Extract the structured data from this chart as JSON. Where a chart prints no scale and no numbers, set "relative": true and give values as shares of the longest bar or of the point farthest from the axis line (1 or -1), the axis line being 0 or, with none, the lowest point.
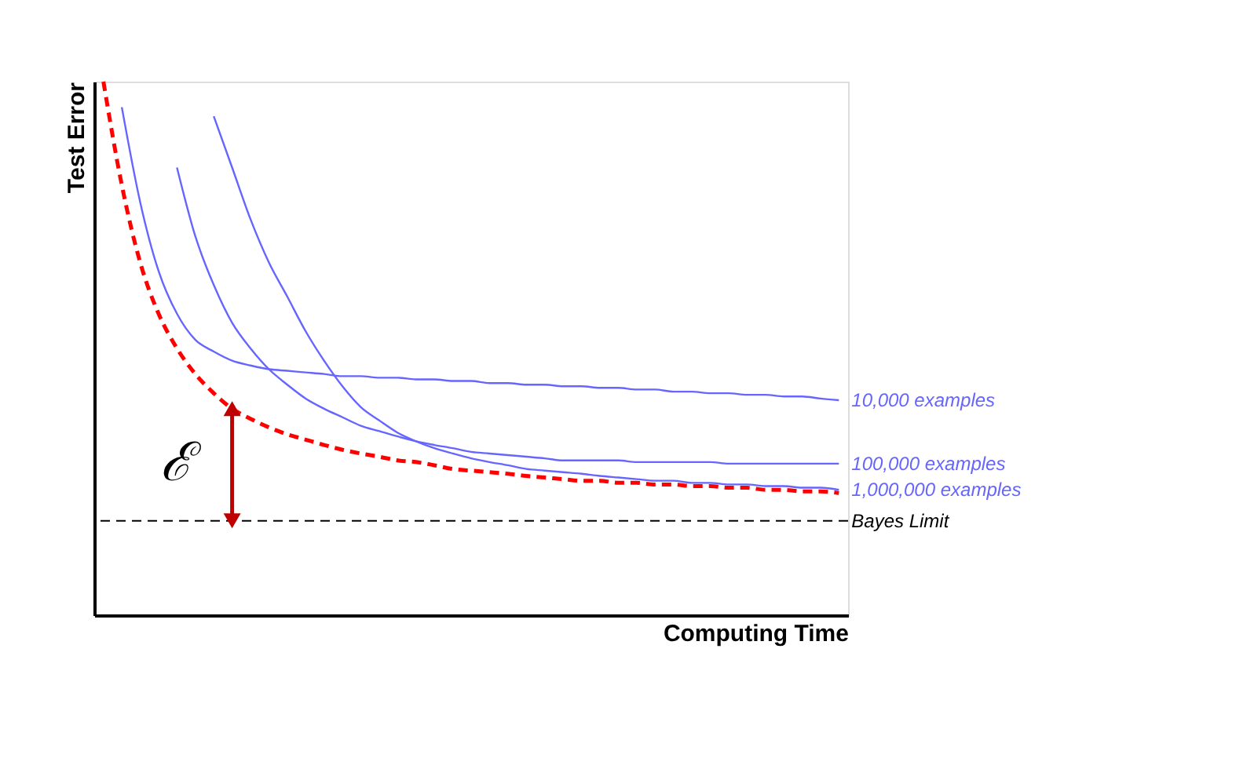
{
  "chart_data": {
    "type": "line",
    "relative": true,
    "xlabel": "Computing Time",
    "ylabel": "Test Error",
    "categories": [
      null,
      null,
      null,
      null,
      null,
      null,
      null,
      null,
      null,
      null,
      null,
      null,
      null,
      null,
      null,
      null,
      null,
      null,
      null,
      null,
      null,
      null,
      null,
      null,
      null,
      null,
      null,
      null,
      null,
      null,
      null,
      null,
      null,
      null,
      null,
      null,
      null,
      null,
      null,
      null,
      null
    ],
    "series": [
      {
        "color": "#ff0000",
        "line_style": "dashed",
        "values": [
          1.0,
          0.806,
          0.661,
          0.565,
          0.5,
          0.452,
          0.416,
          0.387,
          0.368,
          0.352,
          0.339,
          0.329,
          0.319,
          0.31,
          0.303,
          0.297,
          0.29,
          0.287,
          0.281,
          0.274,
          0.271,
          0.268,
          0.265,
          0.261,
          0.258,
          0.255,
          0.252,
          0.252,
          0.248,
          0.248,
          0.245,
          0.245,
          0.242,
          0.242,
          0.239,
          0.239,
          0.235,
          0.235,
          0.232,
          0.232,
          0.229
        ]
      },
      {
        "name": "10,000 examples",
        "color": "#6666ff",
        "line_style": "solid",
        "values": [
          null,
          0.952,
          0.774,
          0.645,
          0.565,
          0.516,
          0.494,
          0.477,
          0.468,
          0.461,
          0.458,
          0.455,
          0.452,
          0.448,
          0.448,
          0.445,
          0.445,
          0.442,
          0.442,
          0.439,
          0.439,
          0.435,
          0.435,
          0.432,
          0.432,
          0.429,
          0.429,
          0.426,
          0.426,
          0.423,
          0.423,
          0.419,
          0.419,
          0.416,
          0.416,
          0.413,
          0.413,
          0.41,
          0.41,
          0.406,
          0.403
        ]
      },
      {
        "name": "100,000 examples",
        "color": "#6666ff",
        "line_style": "solid",
        "values": [
          null,
          null,
          null,
          null,
          0.839,
          0.71,
          0.619,
          0.548,
          0.5,
          0.461,
          0.432,
          0.406,
          0.387,
          0.371,
          0.355,
          0.345,
          0.335,
          0.326,
          0.319,
          0.313,
          0.306,
          0.303,
          0.3,
          0.297,
          0.294,
          0.29,
          0.29,
          0.29,
          0.29,
          0.287,
          0.287,
          0.287,
          0.287,
          0.287,
          0.284,
          0.284,
          0.284,
          0.284,
          0.284,
          0.284,
          0.284
        ]
      },
      {
        "name": "1,000,000 examples",
        "color": "#6666ff",
        "line_style": "solid",
        "values": [
          null,
          null,
          null,
          null,
          null,
          null,
          0.935,
          0.839,
          0.742,
          0.661,
          0.597,
          0.532,
          0.477,
          0.429,
          0.39,
          0.365,
          0.342,
          0.326,
          0.313,
          0.303,
          0.294,
          0.287,
          0.281,
          0.274,
          0.271,
          0.268,
          0.265,
          0.261,
          0.258,
          0.255,
          0.252,
          0.252,
          0.248,
          0.248,
          0.245,
          0.245,
          0.242,
          0.242,
          0.239,
          0.239,
          0.235
        ]
      }
    ],
    "ref_lines": [
      {
        "axis": "y",
        "value": 0.177,
        "label": "Bayes Limit",
        "color": "#000000",
        "line_style": "dashed"
      }
    ],
    "annotations": [
      "ℰ"
    ],
    "grid": false,
    "tick_labels": false
  }
}
